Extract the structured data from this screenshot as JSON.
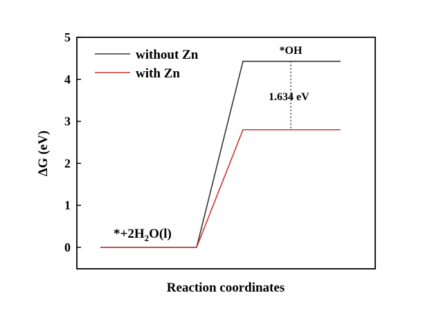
{
  "chart_data": {
    "type": "line",
    "title": "",
    "xlabel": "Reaction coordinates",
    "ylabel_prefix": "ΔG",
    "ylabel_unit": " (eV)",
    "ylim": [
      0,
      5
    ],
    "yticks": [
      "0",
      "1",
      "2",
      "3",
      "4",
      "5"
    ],
    "grid": false,
    "legend_position": "top-left",
    "series": [
      {
        "name": "without Zn",
        "color": "#333333",
        "x": [
          0,
          1,
          2,
          3
        ],
        "values": [
          0,
          0,
          4.43,
          4.43
        ]
      },
      {
        "name": "with Zn",
        "color": "#cc3333",
        "x": [
          0,
          1,
          2,
          3
        ],
        "values": [
          0,
          0,
          2.8,
          2.8
        ]
      }
    ],
    "annotations": {
      "start_state": {
        "prefix": "*+2H",
        "subscript": "2",
        "suffix": "O(l)"
      },
      "end_state": "*OH",
      "energy_difference": "1.634 eV"
    }
  }
}
